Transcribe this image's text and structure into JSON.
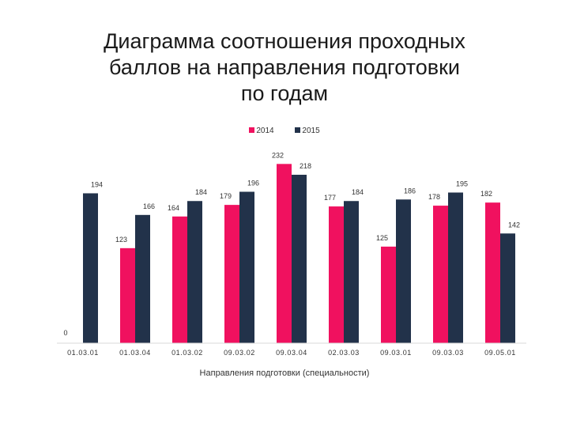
{
  "slide": {
    "title_lines": [
      "Диаграмма соотношения проходных",
      "баллов на направления подготовки",
      "по годам"
    ]
  },
  "chart_data": {
    "type": "bar",
    "title": "Диаграмма соотношения проходных баллов на направления подготовки по годам",
    "xlabel": "Направления подготовки (специальности)",
    "ylabel": "",
    "ylim": [
      0,
      240
    ],
    "grid": false,
    "legend_position": "top",
    "zero_label": "0",
    "categories": [
      "01.03.01",
      "01.03.04",
      "01.03.02",
      "09.03.02",
      "09.03.04",
      "02.03.03",
      "09.03.01",
      "09.03.03",
      "09.05.01"
    ],
    "series": [
      {
        "name": "2014",
        "color": "#f0115f",
        "values": [
          0,
          123,
          164,
          179,
          232,
          177,
          125,
          178,
          182
        ]
      },
      {
        "name": "2015",
        "color": "#22324a",
        "values": [
          194,
          166,
          184,
          196,
          218,
          184,
          186,
          195,
          142
        ]
      }
    ],
    "data_labels": [
      [
        "",
        "123",
        "164",
        "179",
        "232",
        "177",
        "125",
        "178",
        "182"
      ],
      [
        "194",
        "166",
        "184",
        "196",
        "218",
        "184",
        "186",
        "195",
        "142"
      ]
    ]
  }
}
